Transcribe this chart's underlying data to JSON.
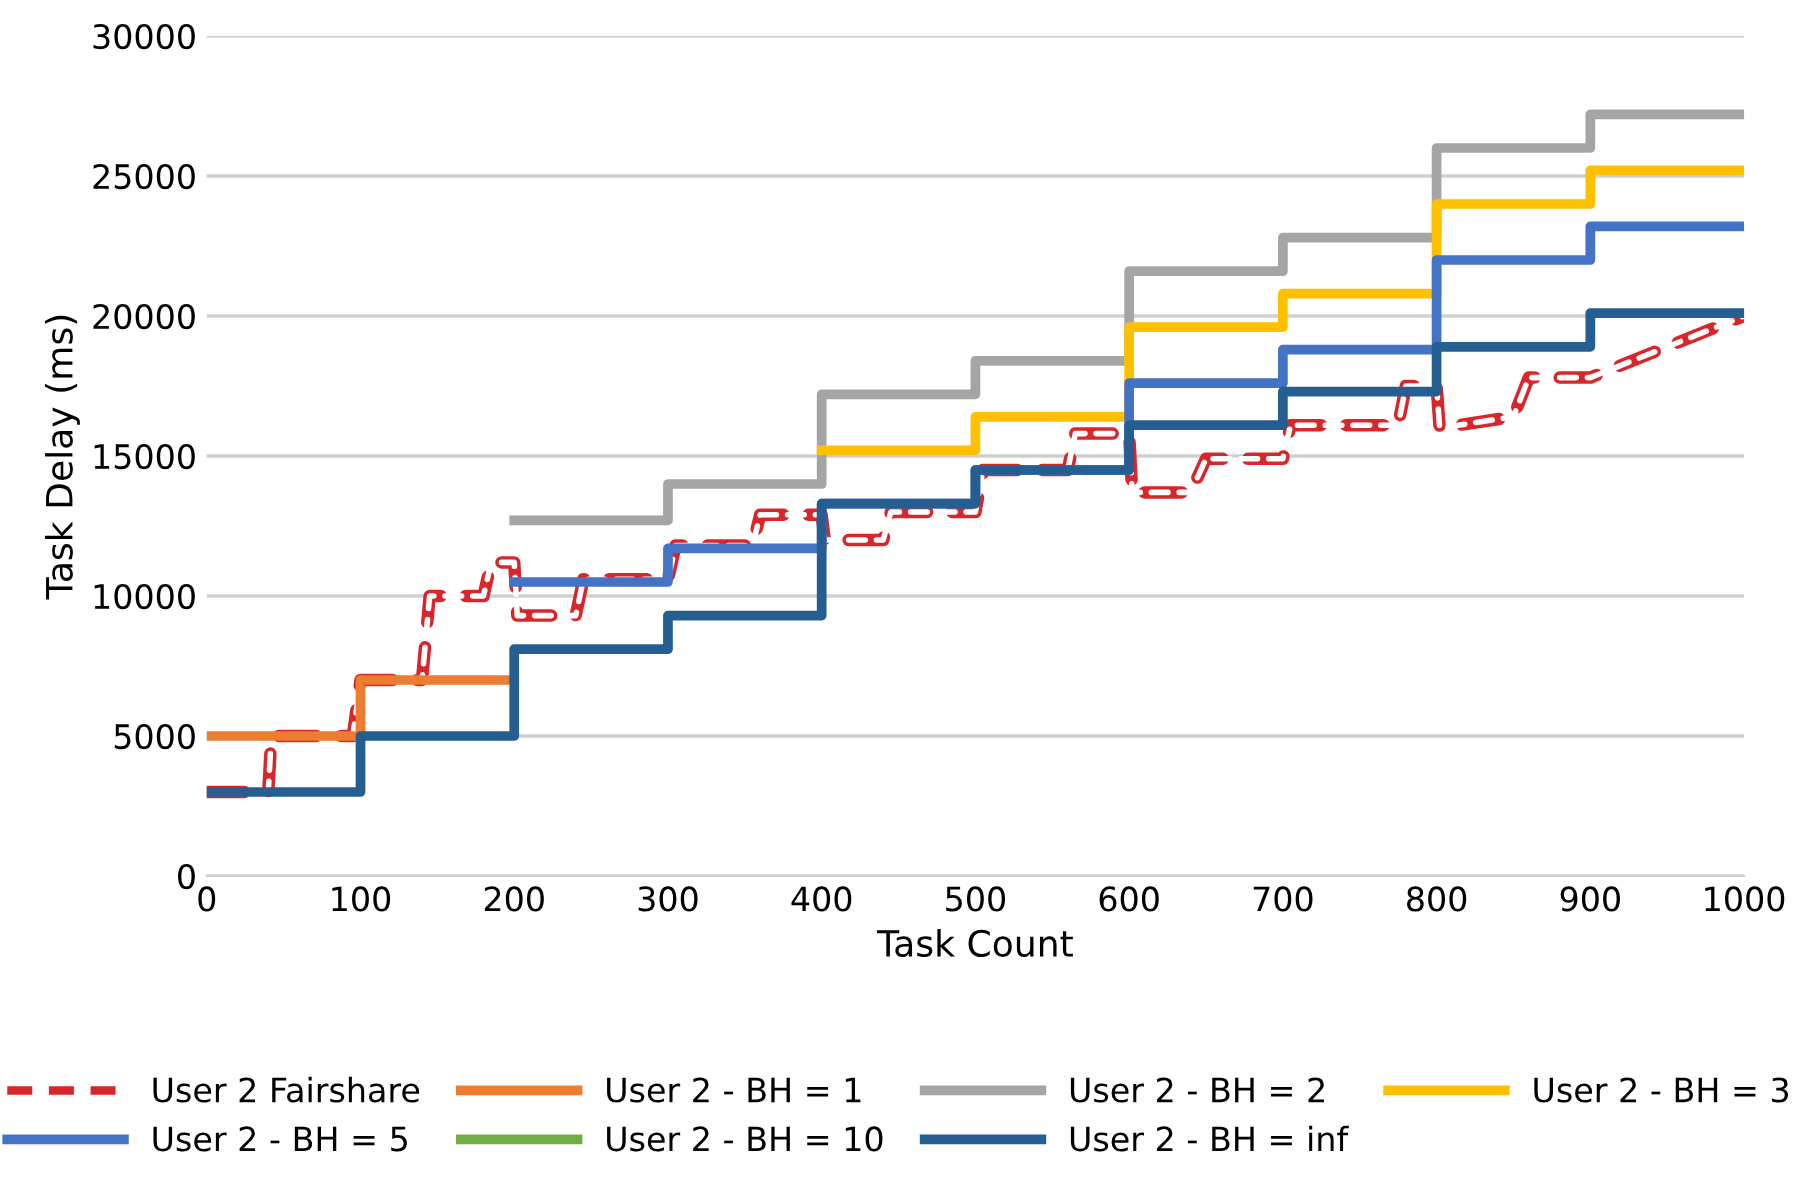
{
  "chart_data": {
    "type": "step",
    "xlabel": "Task Count",
    "ylabel": "Task Delay (ms)",
    "xlim": [
      0,
      1000
    ],
    "xticks": [
      0,
      100,
      200,
      300,
      400,
      500,
      600,
      700,
      800,
      900,
      1000
    ],
    "ylim": [
      0,
      30000
    ],
    "yticks": [
      0,
      5000,
      10000,
      15000,
      20000,
      25000,
      30000
    ],
    "grid": "y",
    "legend": "bottom",
    "x": [
      0,
      100,
      200,
      300,
      400,
      500,
      600,
      700,
      800,
      900,
      1000
    ],
    "series": [
      {
        "name": "User 2 Fairshare",
        "type": "line",
        "line_style": "dashed",
        "color": "#d9262b",
        "x": [
          0,
          40,
          42,
          95,
          100,
          140,
          145,
          180,
          185,
          200,
          202,
          240,
          245,
          300,
          305,
          355,
          360,
          400,
          402,
          440,
          445,
          500,
          505,
          560,
          565,
          600,
          602,
          640,
          650,
          700,
          705,
          775,
          780,
          800,
          802,
          850,
          860,
          900,
          1000
        ],
        "values": [
          3000,
          3000,
          5000,
          5000,
          7000,
          7000,
          10000,
          10000,
          11200,
          11200,
          9300,
          9300,
          10600,
          10600,
          11800,
          11800,
          12900,
          12900,
          12000,
          12000,
          13000,
          13000,
          14500,
          14500,
          15800,
          15800,
          13700,
          13700,
          14900,
          14900,
          16100,
          16100,
          17500,
          17500,
          16000,
          16400,
          17800,
          17800,
          20000
        ]
      },
      {
        "name": "User 2 - BH = 1",
        "color": "#ed7d31",
        "x": [
          0,
          100,
          200
        ],
        "values": [
          5000,
          7000,
          7000
        ]
      },
      {
        "name": "User 2 - BH = 2",
        "color": "#a5a5a5",
        "values": [
          null,
          null,
          12700,
          14000,
          17200,
          18400,
          21600,
          22800,
          26000,
          27200,
          27200
        ]
      },
      {
        "name": "User 2 - BH = 3",
        "color": "#ffc000",
        "values": [
          null,
          null,
          null,
          null,
          15200,
          16400,
          19600,
          20800,
          24000,
          25200,
          25200
        ]
      },
      {
        "name": "User 2 - BH = 5",
        "color": "#4472c4",
        "values": [
          null,
          null,
          10500,
          11700,
          13300,
          14500,
          17600,
          18800,
          22000,
          23200,
          23200
        ]
      },
      {
        "name": "User 2 - BH = 10",
        "color": "#70ad47",
        "values": [
          null,
          null,
          null,
          null,
          null,
          null,
          null,
          null,
          null,
          null,
          null
        ]
      },
      {
        "name": "User 2 - BH = inf",
        "color": "#255e91",
        "values": [
          3000,
          5000,
          8100,
          9300,
          13300,
          14500,
          16100,
          17300,
          18900,
          20100,
          20100
        ]
      }
    ]
  }
}
